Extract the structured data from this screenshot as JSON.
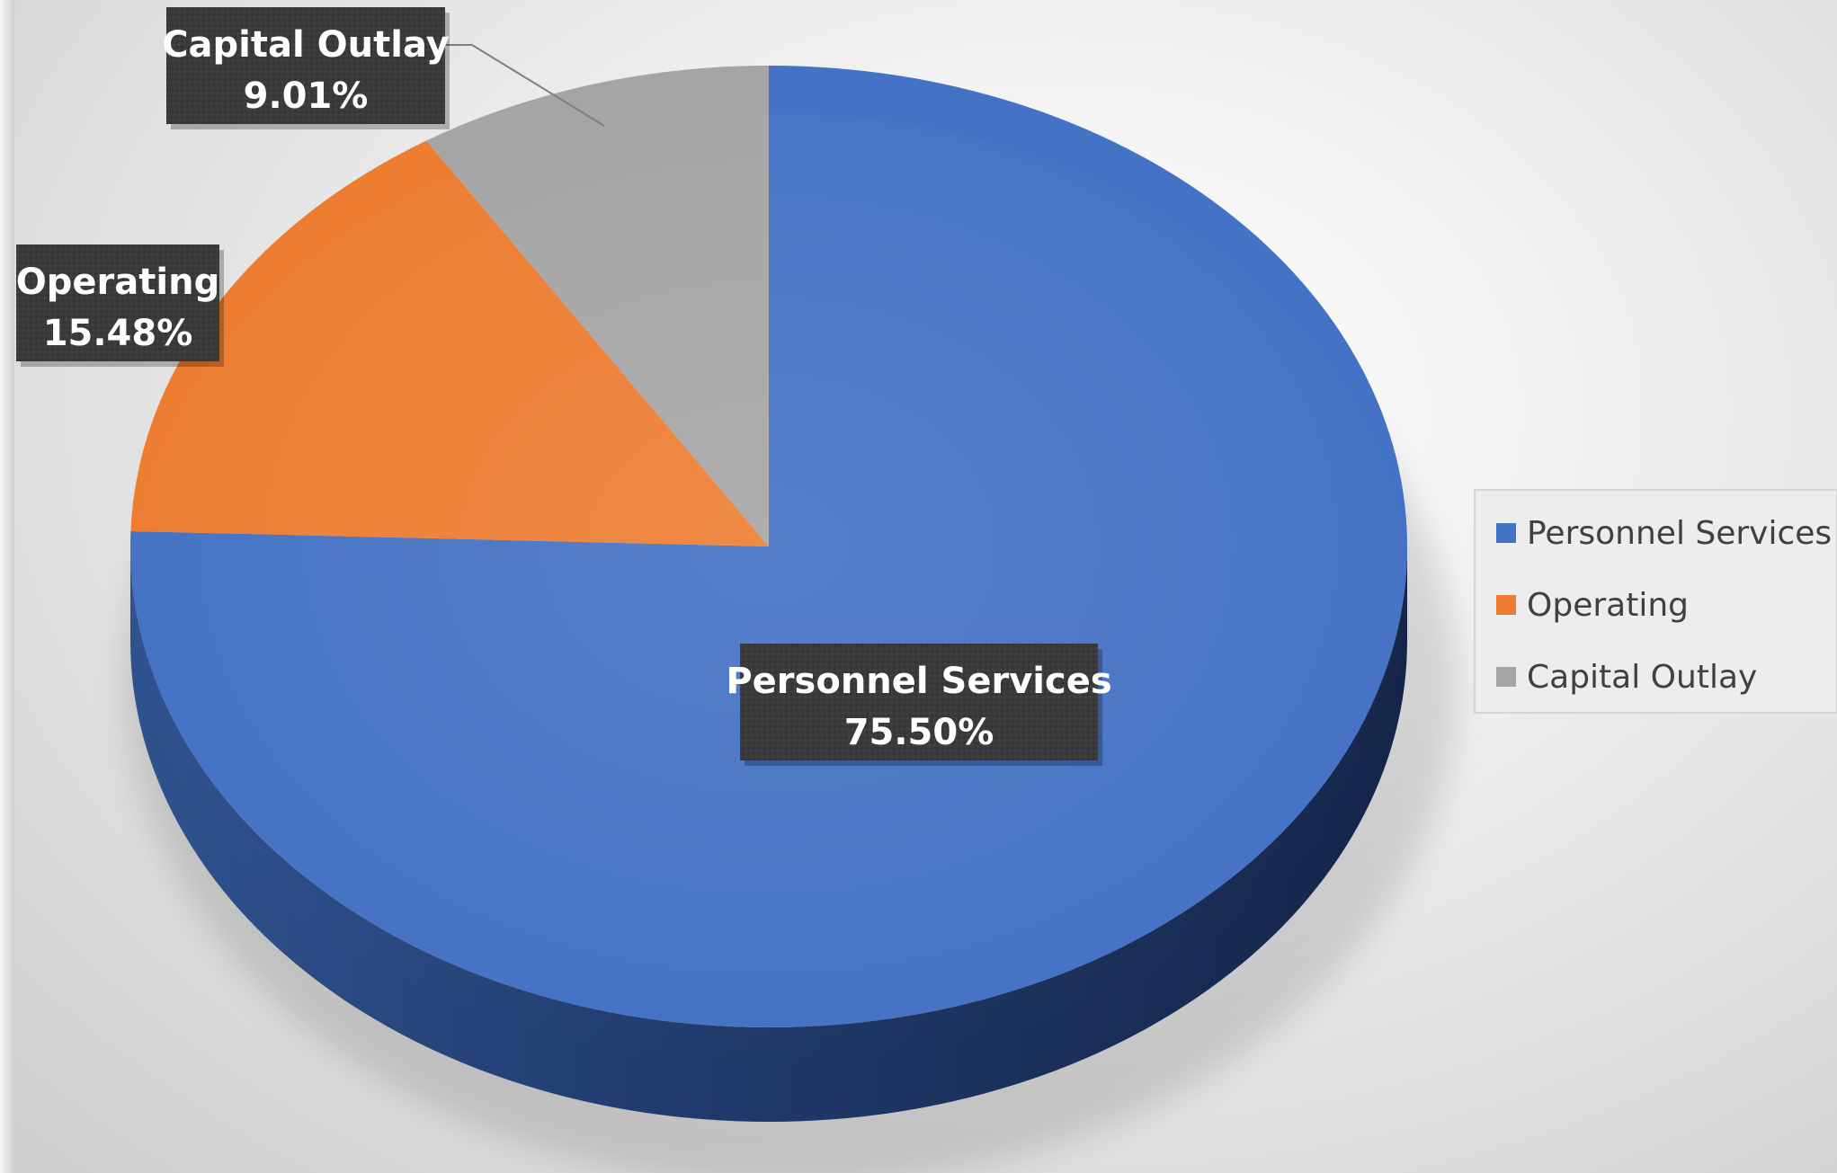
{
  "chart_data": {
    "type": "pie",
    "style": "3d",
    "title": "",
    "categories": [
      "Personnel Services",
      "Operating",
      "Capital Outlay"
    ],
    "values": [
      75.5,
      15.48,
      9.01
    ],
    "value_labels": [
      "75.50%",
      "15.48%",
      "9.01%"
    ],
    "colors": [
      "#4472C4",
      "#ED7D31",
      "#A5A5A5"
    ],
    "legend": {
      "position": "right",
      "entries": [
        "Personnel Services",
        "Operating",
        "Capital Outlay"
      ]
    },
    "data_labels": {
      "show_category_name": true,
      "show_percentage": true,
      "style": "dark callout box"
    }
  }
}
